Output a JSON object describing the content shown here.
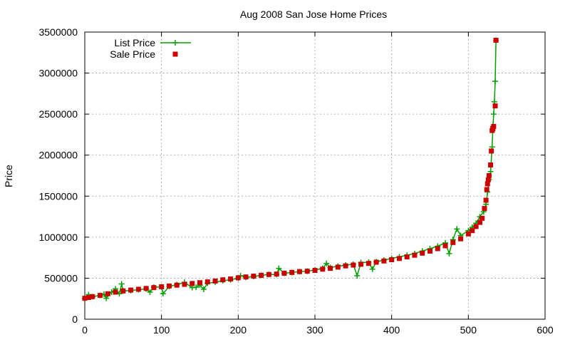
{
  "chart_data": {
    "type": "scatter",
    "title": "Aug 2008 San Jose Home Prices",
    "xlabel": "",
    "ylabel": "Price",
    "xlim": [
      0,
      600
    ],
    "ylim": [
      0,
      3500000
    ],
    "x_ticks": [
      0,
      100,
      200,
      300,
      400,
      500,
      600
    ],
    "y_ticks": [
      0,
      500000,
      1000000,
      1500000,
      2000000,
      2500000,
      3000000,
      3500000
    ],
    "x_tick_labels": [
      "0",
      "100",
      "200",
      "300",
      "400",
      "500",
      "600"
    ],
    "y_tick_labels": [
      "0",
      "500000",
      "1000000",
      "1500000",
      "2000000",
      "2500000",
      "3000000",
      "3500000"
    ],
    "grid": true,
    "legend_position": "top-left",
    "legend": [
      "List Price",
      "Sale Price"
    ],
    "series": [
      {
        "name": "List Price",
        "style": "line+plus",
        "color": "#00a000",
        "points": [
          [
            0,
            255000
          ],
          [
            5,
            300000
          ],
          [
            10,
            275000
          ],
          [
            20,
            290000
          ],
          [
            25,
            305000
          ],
          [
            28,
            255000
          ],
          [
            35,
            330000
          ],
          [
            40,
            370000
          ],
          [
            45,
            310000
          ],
          [
            48,
            430000
          ],
          [
            50,
            345000
          ],
          [
            60,
            350000
          ],
          [
            70,
            360000
          ],
          [
            80,
            370000
          ],
          [
            85,
            330000
          ],
          [
            90,
            390000
          ],
          [
            100,
            395000
          ],
          [
            102,
            310000
          ],
          [
            110,
            400000
          ],
          [
            120,
            420000
          ],
          [
            130,
            450000
          ],
          [
            140,
            385000
          ],
          [
            145,
            390000
          ],
          [
            150,
            415000
          ],
          [
            155,
            365000
          ],
          [
            160,
            440000
          ],
          [
            170,
            450000
          ],
          [
            180,
            470000
          ],
          [
            190,
            480000
          ],
          [
            200,
            500000
          ],
          [
            203,
            530000
          ],
          [
            210,
            510000
          ],
          [
            220,
            520000
          ],
          [
            230,
            535000
          ],
          [
            240,
            545000
          ],
          [
            250,
            545000
          ],
          [
            253,
            620000
          ],
          [
            260,
            560000
          ],
          [
            270,
            570000
          ],
          [
            280,
            580000
          ],
          [
            290,
            585000
          ],
          [
            300,
            600000
          ],
          [
            310,
            620000
          ],
          [
            315,
            680000
          ],
          [
            320,
            630000
          ],
          [
            330,
            645000
          ],
          [
            340,
            660000
          ],
          [
            350,
            670000
          ],
          [
            355,
            530000
          ],
          [
            360,
            690000
          ],
          [
            370,
            695000
          ],
          [
            375,
            610000
          ],
          [
            380,
            700000
          ],
          [
            390,
            720000
          ],
          [
            400,
            740000
          ],
          [
            410,
            760000
          ],
          [
            420,
            780000
          ],
          [
            430,
            800000
          ],
          [
            440,
            830000
          ],
          [
            450,
            860000
          ],
          [
            460,
            890000
          ],
          [
            470,
            930000
          ],
          [
            475,
            800000
          ],
          [
            480,
            970000
          ],
          [
            485,
            1100000
          ],
          [
            490,
            1020000
          ],
          [
            500,
            1080000
          ],
          [
            505,
            1120000
          ],
          [
            510,
            1170000
          ],
          [
            515,
            1250000
          ],
          [
            520,
            1310000
          ],
          [
            523,
            1400000
          ],
          [
            525,
            1550000
          ],
          [
            527,
            1700000
          ],
          [
            529,
            1800000
          ],
          [
            531,
            2100000
          ],
          [
            532,
            2350000
          ],
          [
            533,
            2500000
          ],
          [
            534,
            2650000
          ],
          [
            535,
            2900000
          ],
          [
            536,
            3400000
          ]
        ]
      },
      {
        "name": "Sale Price",
        "style": "square",
        "color": "#cc0000",
        "points": [
          [
            0,
            255000
          ],
          [
            5,
            265000
          ],
          [
            10,
            275000
          ],
          [
            20,
            290000
          ],
          [
            30,
            310000
          ],
          [
            40,
            330000
          ],
          [
            50,
            345000
          ],
          [
            60,
            355000
          ],
          [
            70,
            365000
          ],
          [
            80,
            375000
          ],
          [
            90,
            385000
          ],
          [
            100,
            395000
          ],
          [
            110,
            405000
          ],
          [
            120,
            415000
          ],
          [
            130,
            425000
          ],
          [
            140,
            435000
          ],
          [
            150,
            445000
          ],
          [
            160,
            455000
          ],
          [
            170,
            465000
          ],
          [
            180,
            480000
          ],
          [
            190,
            490000
          ],
          [
            200,
            505000
          ],
          [
            210,
            515000
          ],
          [
            220,
            525000
          ],
          [
            230,
            535000
          ],
          [
            240,
            545000
          ],
          [
            250,
            550000
          ],
          [
            260,
            560000
          ],
          [
            270,
            570000
          ],
          [
            280,
            580000
          ],
          [
            290,
            585000
          ],
          [
            300,
            595000
          ],
          [
            310,
            610000
          ],
          [
            320,
            620000
          ],
          [
            330,
            635000
          ],
          [
            340,
            650000
          ],
          [
            350,
            660000
          ],
          [
            360,
            670000
          ],
          [
            370,
            680000
          ],
          [
            380,
            695000
          ],
          [
            390,
            710000
          ],
          [
            400,
            725000
          ],
          [
            410,
            740000
          ],
          [
            420,
            760000
          ],
          [
            430,
            780000
          ],
          [
            440,
            805000
          ],
          [
            450,
            830000
          ],
          [
            460,
            860000
          ],
          [
            470,
            895000
          ],
          [
            480,
            935000
          ],
          [
            490,
            980000
          ],
          [
            500,
            1040000
          ],
          [
            505,
            1080000
          ],
          [
            510,
            1130000
          ],
          [
            515,
            1180000
          ],
          [
            518,
            1230000
          ],
          [
            521,
            1350000
          ],
          [
            523,
            1450000
          ],
          [
            524,
            1580000
          ],
          [
            525,
            1650000
          ],
          [
            526,
            1700000
          ],
          [
            527,
            1750000
          ],
          [
            529,
            1880000
          ],
          [
            530,
            2050000
          ],
          [
            531,
            2300000
          ],
          [
            532,
            2320000
          ],
          [
            533,
            2350000
          ],
          [
            535,
            2600000
          ],
          [
            536,
            3400000
          ]
        ]
      }
    ]
  }
}
